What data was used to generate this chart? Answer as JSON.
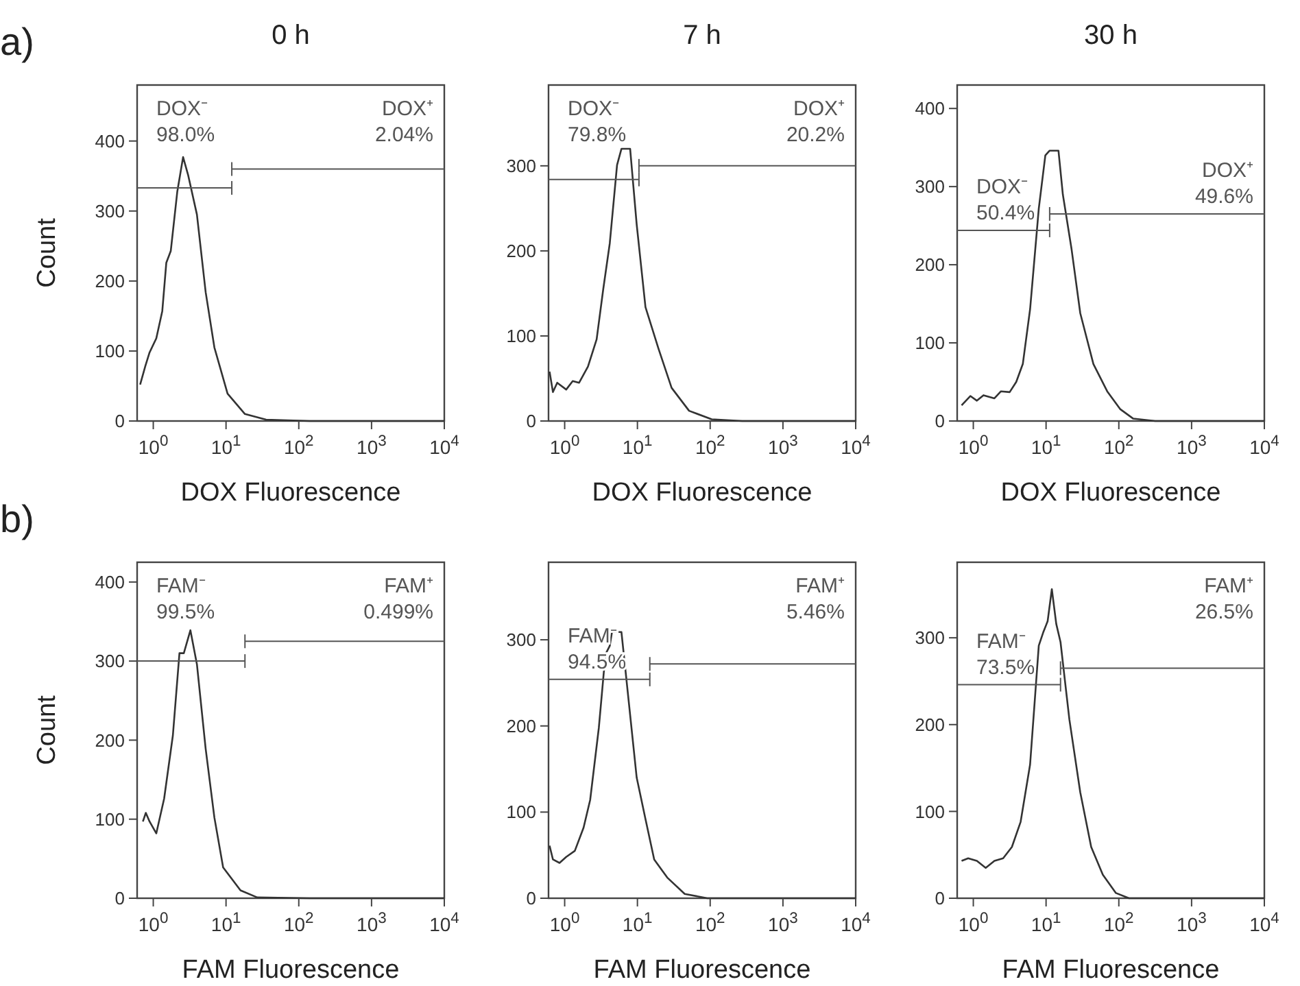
{
  "chart_data": [
    {
      "type": "line",
      "title": "0 h",
      "xlabel": "DOX Fluorescence",
      "ylabel": "Count",
      "annotations": [
        "a)"
      ],
      "log": "x",
      "xlim": [
        0.6,
        10000
      ],
      "ylim": [
        0,
        480
      ],
      "yticks": [
        0,
        100,
        200,
        300,
        400
      ],
      "xticks": [
        {
          "value": 1,
          "label": "10$^{0}$"
        },
        {
          "value": 10,
          "label": "10$^{1}$"
        },
        {
          "value": 100,
          "label": "10$^{2}$"
        },
        {
          "value": 1000,
          "label": "10$^{3}$"
        },
        {
          "value": 10000,
          "label": "10$^{4}$"
        }
      ],
      "series": [
        {
          "color": "#333333",
          "x": [
            0.66,
            0.78,
            0.89,
            1.1,
            1.33,
            1.51,
            1.74,
            2.14,
            2.57,
            3.02,
            3.98,
            5.25,
            6.92,
            10.5,
            18.2,
            35.5,
            141,
            10000
          ],
          "values": [
            52,
            79,
            98,
            118,
            157,
            226,
            243,
            328,
            377,
            351,
            295,
            184,
            105,
            39,
            10,
            2,
            0,
            0
          ]
        },
        {
          "name": "DOX⁻\n98.0%",
          "color": "#555555",
          "x": [
            0.6,
            12
          ],
          "values": [
            333,
            333
          ]
        },
        {
          "name": "DOX⁺\n2.04%",
          "color": "#555555",
          "x": [
            12,
            10000
          ],
          "values": [
            360,
            360
          ]
        }
      ]
    },
    {
      "type": "line",
      "title": "7 h",
      "xlabel": "DOX Fluorescence",
      "log": "x",
      "xlim": [
        0.6,
        10000
      ],
      "ylim": [
        0,
        395
      ],
      "yticks": [
        0,
        100,
        200,
        300
      ],
      "xticks": [
        {
          "value": 1,
          "label": "10$^{0}$"
        },
        {
          "value": 10,
          "label": "10$^{1}$"
        },
        {
          "value": 100,
          "label": "10$^{2}$"
        },
        {
          "value": 1000,
          "label": "10$^{3}$"
        },
        {
          "value": 10000,
          "label": "10$^{4}$"
        }
      ],
      "series": [
        {
          "color": "#333333",
          "x": [
            0.62,
            0.69,
            0.79,
            1.05,
            1.29,
            1.58,
            2.09,
            2.75,
            3.39,
            4.17,
            5.25,
            6.03,
            7.94,
            9.77,
            12.9,
            19.5,
            29.5,
            51.3,
            105,
            275,
            10000
          ],
          "values": [
            58,
            34,
            45,
            37,
            47,
            45,
            64,
            96,
            155,
            209,
            301,
            320,
            320,
            231,
            134,
            85,
            39,
            12,
            2,
            0,
            0
          ]
        },
        {
          "name": "DOX⁻\n79.8%",
          "color": "#555555",
          "x": [
            0.6,
            10.5
          ],
          "values": [
            284,
            284
          ]
        },
        {
          "name": "DOX⁺\n20.2%",
          "color": "#555555",
          "x": [
            10.5,
            10000
          ],
          "values": [
            300,
            300
          ]
        }
      ]
    },
    {
      "type": "line",
      "title": "30 h",
      "xlabel": "DOX Fluorescence",
      "log": "x",
      "xlim": [
        0.6,
        10000
      ],
      "ylim": [
        0,
        430
      ],
      "yticks": [
        0,
        100,
        200,
        300,
        400
      ],
      "xticks": [
        {
          "value": 1,
          "label": "10$^{0}$"
        },
        {
          "value": 10,
          "label": "10$^{1}$"
        },
        {
          "value": 100,
          "label": "10$^{2}$"
        },
        {
          "value": 1000,
          "label": "10$^{3}$"
        },
        {
          "value": 10000,
          "label": "10$^{4}$"
        }
      ],
      "series": [
        {
          "color": "#333333",
          "x": [
            0.69,
            0.91,
            1.12,
            1.38,
            1.95,
            2.4,
            3.16,
            3.89,
            4.79,
            6.03,
            7.94,
            9.77,
            11.2,
            14.8,
            17,
            22.4,
            29.5,
            44.7,
            69.2,
            105,
            158,
            316,
            10000
          ],
          "values": [
            20,
            32,
            26,
            33,
            29,
            38,
            37,
            50,
            73,
            143,
            272,
            340,
            346,
            346,
            290,
            220,
            138,
            73,
            38,
            15,
            3,
            0,
            0
          ]
        },
        {
          "name": "DOX⁻\n50.4%",
          "color": "#555555",
          "x": [
            0.6,
            11.2
          ],
          "values": [
            244,
            244
          ]
        },
        {
          "name": "DOX⁺\n49.6%",
          "color": "#555555",
          "x": [
            11.2,
            10000
          ],
          "values": [
            265,
            265
          ]
        }
      ]
    },
    {
      "type": "line",
      "xlabel": "FAM Fluorescence",
      "ylabel": "Count",
      "annotations": [
        "b)"
      ],
      "log": "x",
      "xlim": [
        0.6,
        10000
      ],
      "ylim": [
        0,
        425
      ],
      "yticks": [
        0,
        100,
        200,
        300,
        400
      ],
      "xticks": [
        {
          "value": 1,
          "label": "10$^{0}$"
        },
        {
          "value": 10,
          "label": "10$^{1}$"
        },
        {
          "value": 100,
          "label": "10$^{2}$"
        },
        {
          "value": 1000,
          "label": "10$^{3}$"
        },
        {
          "value": 10000,
          "label": "10$^{4}$"
        }
      ],
      "series": [
        {
          "color": "#333333",
          "x": [
            0.72,
            0.79,
            0.89,
            1.1,
            1.41,
            1.86,
            2.29,
            2.63,
            3.24,
            3.98,
            5.25,
            6.92,
            9.12,
            15.8,
            26.9,
            141,
            10000
          ],
          "values": [
            97,
            108,
            97,
            82,
            126,
            206,
            310,
            310,
            339,
            296,
            189,
            102,
            39,
            10,
            1,
            0,
            0
          ]
        },
        {
          "name": "FAM⁻\n99.5%",
          "color": "#555555",
          "x": [
            0.6,
            18.2
          ],
          "values": [
            300,
            300
          ]
        },
        {
          "name": "FAM⁺\n0.499%",
          "color": "#555555",
          "x": [
            18.2,
            10000
          ],
          "values": [
            325,
            325
          ]
        }
      ]
    },
    {
      "type": "line",
      "xlabel": "FAM Fluorescence",
      "log": "x",
      "xlim": [
        0.6,
        10000
      ],
      "ylim": [
        0,
        390
      ],
      "yticks": [
        0,
        100,
        200,
        300
      ],
      "xticks": [
        {
          "value": 1,
          "label": "10$^{0}$"
        },
        {
          "value": 10,
          "label": "10$^{1}$"
        },
        {
          "value": 100,
          "label": "10$^{2}$"
        },
        {
          "value": 1000,
          "label": "10$^{3}$"
        },
        {
          "value": 10000,
          "label": "10$^{4}$"
        }
      ],
      "series": [
        {
          "color": "#333333",
          "x": [
            0.62,
            0.69,
            0.85,
            1.05,
            1.38,
            1.82,
            2.24,
            2.95,
            3.63,
            4.17,
            4.47,
            6.03,
            6.92,
            9.77,
            12.9,
            17,
            25.7,
            44.7,
            91.2,
            10000
          ],
          "values": [
            61,
            45,
            41,
            48,
            55,
            82,
            114,
            198,
            283,
            293,
            309,
            309,
            261,
            140,
            92,
            45,
            24,
            5,
            0,
            0
          ]
        },
        {
          "name": "FAM⁻\n94.5%",
          "color": "#555555",
          "x": [
            0.6,
            14.8
          ],
          "values": [
            254,
            254
          ]
        },
        {
          "name": "FAM⁺\n5.46%",
          "color": "#555555",
          "x": [
            14.8,
            10000
          ],
          "values": [
            272,
            272
          ]
        }
      ]
    },
    {
      "type": "line",
      "xlabel": "FAM Fluorescence",
      "log": "x",
      "xlim": [
        0.6,
        10000
      ],
      "ylim": [
        0,
        387
      ],
      "yticks": [
        0,
        100,
        200,
        300
      ],
      "xticks": [
        {
          "value": 1,
          "label": "10$^{0}$"
        },
        {
          "value": 10,
          "label": "10$^{1}$"
        },
        {
          "value": 100,
          "label": "10$^{2}$"
        },
        {
          "value": 1000,
          "label": "10$^{3}$"
        },
        {
          "value": 10000,
          "label": "10$^{4}$"
        }
      ],
      "series": [
        {
          "color": "#333333",
          "x": [
            0.69,
            0.85,
            1.12,
            1.48,
            1.95,
            2.57,
            3.39,
            4.47,
            6.03,
            7.94,
            9.12,
            10.5,
            12,
            13.8,
            15.8,
            20.9,
            29.5,
            41.7,
            60.3,
            91.2,
            138,
            10000
          ],
          "values": [
            43,
            46,
            43,
            35,
            43,
            46,
            59,
            88,
            154,
            291,
            306,
            319,
            356,
            316,
            295,
            206,
            122,
            59,
            27,
            6,
            0,
            0
          ]
        },
        {
          "name": "FAM⁻\n73.5%",
          "color": "#555555",
          "x": [
            0.6,
            15.8
          ],
          "values": [
            246,
            246
          ]
        },
        {
          "name": "FAM⁺\n26.5%",
          "color": "#555555",
          "x": [
            15.8,
            10000
          ],
          "values": [
            265,
            265
          ]
        }
      ]
    }
  ]
}
